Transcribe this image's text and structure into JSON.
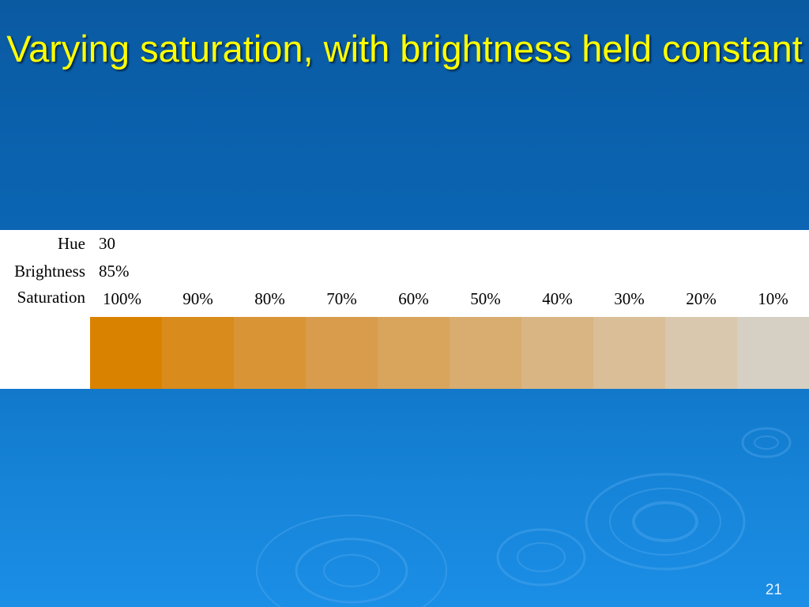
{
  "title": "Varying saturation, with brightness held constant",
  "table": {
    "rows": [
      [
        "Hue",
        "30"
      ],
      [
        "Brightness",
        "85%"
      ]
    ],
    "saturation_label": "Saturation",
    "saturation": [
      "100%",
      "90%",
      "80%",
      "70%",
      "60%",
      "50%",
      "40%",
      "30%",
      "20%",
      "10%"
    ],
    "swatch_colors": [
      "#d98200",
      "#d98b1b",
      "#d99436",
      "#d99c4c",
      "#d9a45c",
      "#d9ac70",
      "#d9b583",
      "#d9be98",
      "#d9c8ae",
      "#d6cfc3"
    ]
  },
  "slide_number": "21"
}
